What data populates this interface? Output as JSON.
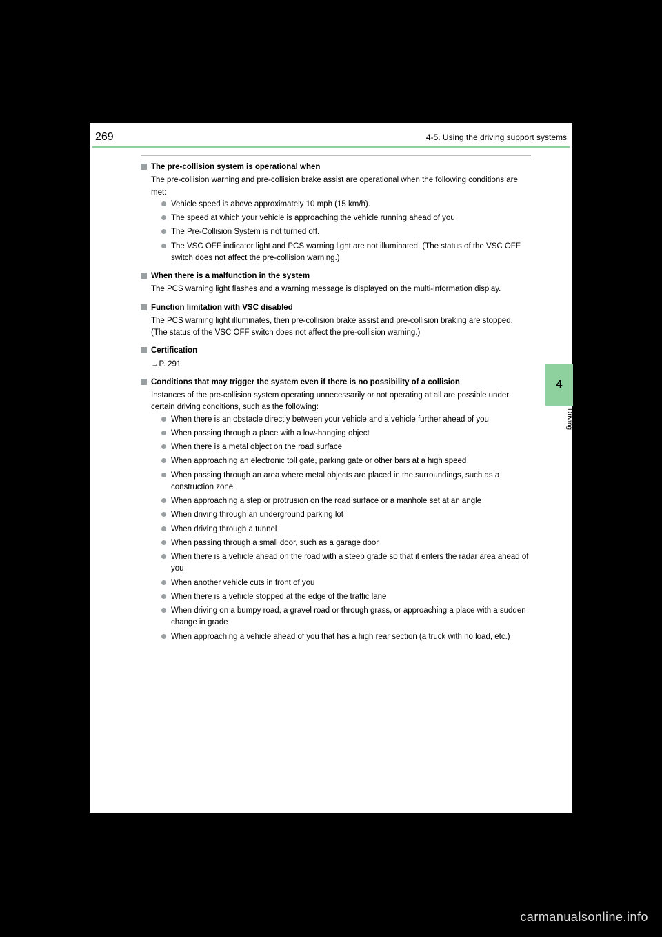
{
  "colors": {
    "page_bg": "#ffffff",
    "body_bg": "#000000",
    "accent": "#8fd19e",
    "marker_gray": "#9aa0a2",
    "watermark": "#dddddd"
  },
  "header": {
    "page_number": "269",
    "section": "4-5. Using the driving support systems"
  },
  "side_tab": {
    "number": "4",
    "label": "Driving"
  },
  "sections": [
    {
      "heading": "The pre-collision system is operational when",
      "body": "The pre-collision warning and pre-collision brake assist are operational when the following conditions are met:",
      "bullets": [
        "Vehicle speed is above approximately 10 mph (15 km/h).",
        "The speed at which your vehicle is approaching the vehicle running ahead of you",
        "The Pre-Collision System is not turned off.",
        "The VSC OFF indicator light and PCS warning light are not illuminated. (The status of the VSC OFF switch does not affect the pre-collision warning.)"
      ]
    },
    {
      "heading": "When there is a malfunction in the system",
      "body": "The PCS warning light flashes and a warning message is displayed on the multi-information display."
    },
    {
      "heading": "Function limitation with VSC disabled",
      "body": "The PCS warning light illuminates, then pre-collision brake assist and pre-collision braking are stopped. (The status of the VSC OFF switch does not affect the pre-collision warning.)"
    },
    {
      "heading": "Certification",
      "body": "→P. 291"
    },
    {
      "heading": "Conditions that may trigger the system even if there is no possibility of a collision",
      "body": "Instances of the pre-collision system operating unnecessarily or not operating at all are possible under certain driving conditions, such as the following:",
      "bullets": [
        "When there is an obstacle directly between your vehicle and a vehicle further ahead of you",
        "When passing through a place with a low-hanging object",
        "When there is a metal object on the road surface",
        "When approaching an electronic toll gate, parking gate or other bars at a high speed",
        "When passing through an area where metal objects are placed in the surroundings, such as a construction zone",
        "When approaching a step or protrusion on the road surface or a manhole set at an angle",
        "When driving through an underground parking lot",
        "When driving through a tunnel",
        "When passing through a small door, such as a garage door",
        "When there is a vehicle ahead on the road with a steep grade so that it enters the radar area ahead of you",
        "When another vehicle cuts in front of you",
        "When there is a vehicle stopped at the edge of the traffic lane",
        "When driving on a bumpy road, a gravel road or through grass, or approaching a place with a sudden change in grade",
        "When approaching a vehicle ahead of you that has a high rear section (a truck with no load, etc.)"
      ]
    }
  ],
  "footer": {
    "watermark": "carmanualsonline.info"
  }
}
